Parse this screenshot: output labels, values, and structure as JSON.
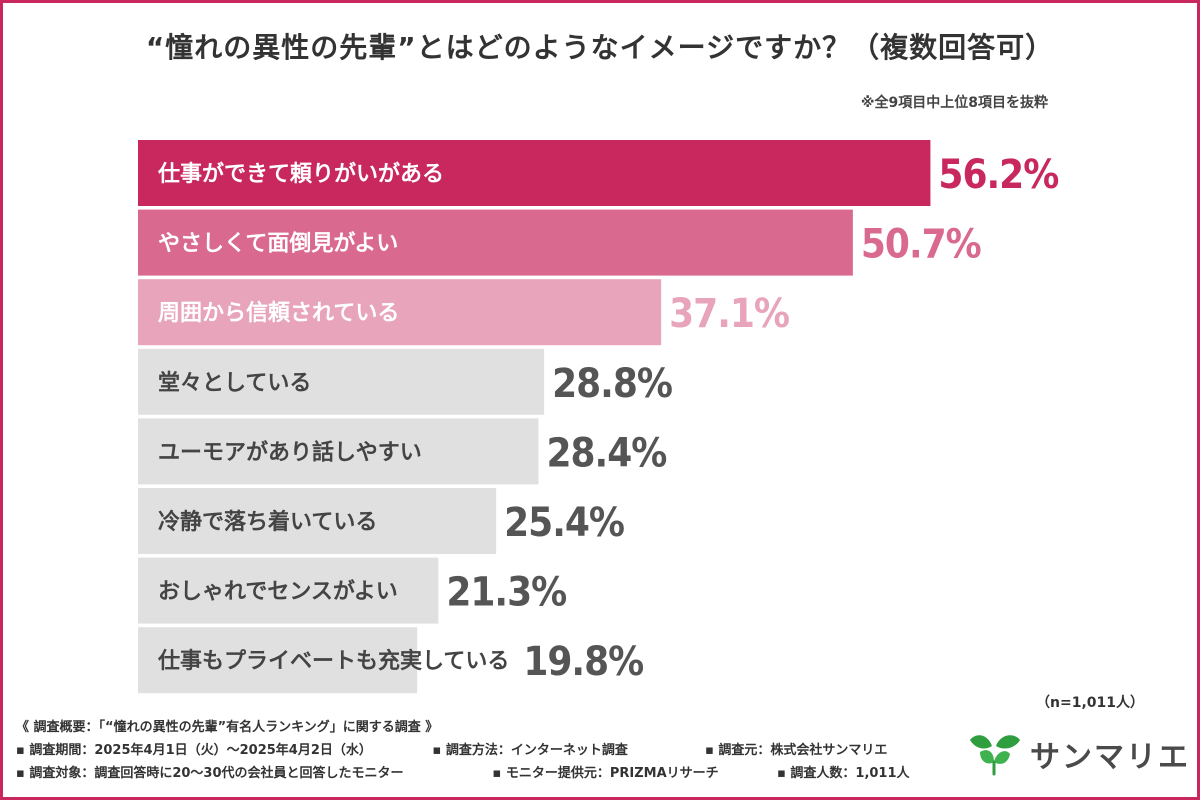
{
  "title": "“憧れの異性の先輩”とはどのようなイメージですか？（複数回答可）",
  "note": "※全9項目中上位8項目を抜粋",
  "sample_size": "（n=1,011人）",
  "footer": {
    "heading": "《 調査概要：「“憧れの異性の先輩”有名人ランキング」に関する調査 》",
    "period": "▪ 調査期間：2025年4月1日（火）〜2025年4月2日（水）",
    "method": "▪ 調査方法：インターネット調査",
    "source": "▪ 調査元：株式会社サンマリエ",
    "target": "▪ 調査対象：調査回答時に20〜30代の会社員と回答したモニター",
    "provider": "▪ モニター提供元：PRIZMAリサーチ",
    "count": "▪ 調査人数：1,011人"
  },
  "logo": {
    "text": "サンマリエ",
    "icon": "leaf-icon"
  },
  "colors": {
    "accent": "#c8285e",
    "frame": "#c8285e",
    "logo_leaf": "#2e9e3e"
  },
  "chart_data": {
    "type": "bar",
    "orientation": "horizontal",
    "categories": [
      "仕事ができて頼りがいがある",
      "やさしくて面倒見がよい",
      "周囲から信頼されている",
      "堂々としている",
      "ユーモアがあり話しやすい",
      "冷静で落ち着いている",
      "おしゃれでセンスがよい",
      "仕事もプライベートも充実している"
    ],
    "values": [
      56.2,
      50.7,
      37.1,
      28.8,
      28.4,
      25.4,
      21.3,
      19.8
    ],
    "value_labels": [
      "56.2%",
      "50.7%",
      "37.1%",
      "28.8%",
      "28.4%",
      "25.4%",
      "21.3%",
      "19.8%"
    ],
    "bar_colors": [
      "#c8285e",
      "#d9698f",
      "#e8a4ba",
      "#e0e0e0",
      "#e0e0e0",
      "#e0e0e0",
      "#e0e0e0",
      "#e0e0e0"
    ],
    "label_colors": [
      "#ffffff",
      "#ffffff",
      "#ffffff",
      "#444444",
      "#444444",
      "#444444",
      "#444444",
      "#444444"
    ],
    "value_colors": [
      "#c8285e",
      "#d9698f",
      "#e8a4ba",
      "#555555",
      "#555555",
      "#555555",
      "#555555",
      "#555555"
    ],
    "xlim": [
      0,
      63
    ],
    "grid": false,
    "legend": "none"
  }
}
